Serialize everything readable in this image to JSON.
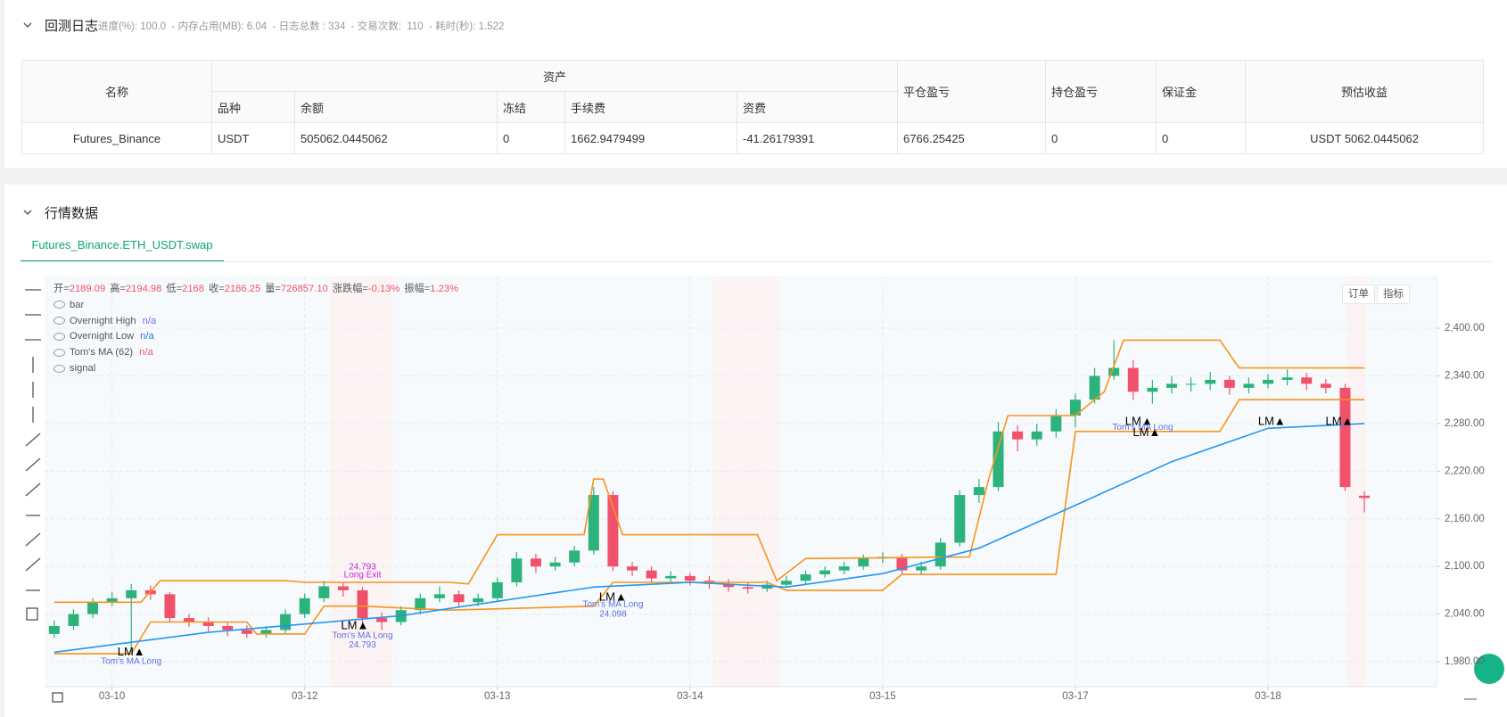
{
  "header": {
    "title": "回测日志",
    "stats": "进度(%): 100.0  - 内存占用(MB): 6.04  - 日志总数 : 334  - 交易次数:  110  - 耗时(秒): 1.522"
  },
  "table": {
    "name_header": "名称",
    "asset_header": "资产",
    "asset_subheaders": [
      "品种",
      "余额",
      "冻结",
      "手续费",
      "资费"
    ],
    "other_headers": [
      "平仓盈亏",
      "持仓盈亏",
      "保证金",
      "预估收益"
    ],
    "rows": [
      [
        "Futures_Binance",
        "USDT",
        "505062.0445062",
        "0",
        "1662.9479499",
        "-41.26179391",
        "6766.25425",
        "0",
        "0",
        "USDT 5062.0445062"
      ]
    ]
  },
  "market": {
    "title": "行情数据",
    "tab": "Futures_Binance.ETH_USDT.swap",
    "buttons": [
      "订单",
      "指标"
    ]
  },
  "chart_data": {
    "type": "candlestick",
    "info": [
      {
        "label": "开=",
        "value": "2189.09"
      },
      {
        "label": "高=",
        "value": "2194.98"
      },
      {
        "label": "低=",
        "value": "2168"
      },
      {
        "label": "收=",
        "value": "2186.25"
      },
      {
        "label": "量=",
        "value": "726857.10"
      },
      {
        "label": "涨跌幅=",
        "value": "-0.13%"
      },
      {
        "label": "振幅=",
        "value": "1.23%"
      }
    ],
    "bar_label": "bar",
    "signal_label": "signal",
    "up_color": "#2bb37b",
    "down_color": "#f0526b",
    "xlim": [
      -0.35,
      6.87
    ],
    "ylim": [
      1948.6,
      2465.2
    ],
    "grid": true,
    "xticks": [
      {
        "value": 0,
        "label": "03-10"
      },
      {
        "value": 1,
        "label": "03-12"
      },
      {
        "value": 2,
        "label": "03-13"
      },
      {
        "value": 3,
        "label": "03-14"
      },
      {
        "value": 4,
        "label": "03-15"
      },
      {
        "value": 5,
        "label": "03-17"
      },
      {
        "value": 6,
        "label": "03-18"
      }
    ],
    "yticks": [
      {
        "value": 1980,
        "label": "1,980.00"
      },
      {
        "value": 2040,
        "label": "2,040.00"
      },
      {
        "value": 2100,
        "label": "2,100.00"
      },
      {
        "value": 2160,
        "label": "2,160.00"
      },
      {
        "value": 2220,
        "label": "2,220.00"
      },
      {
        "value": 2280,
        "label": "2,280.00"
      },
      {
        "value": 2340,
        "label": "2,340.00"
      },
      {
        "value": 2400,
        "label": "2,400.00"
      }
    ],
    "x": [
      -0.3,
      -0.2,
      -0.1,
      0,
      0.1,
      0.2,
      0.3,
      0.4,
      0.5,
      0.6,
      0.7,
      0.8,
      0.9,
      1,
      1.1,
      1.2,
      1.3,
      1.4,
      1.5,
      1.6,
      1.7,
      1.8,
      1.9,
      2,
      2.1,
      2.2,
      2.3,
      2.4,
      2.5,
      2.6,
      2.7,
      2.8,
      2.9,
      3,
      3.1,
      3.2,
      3.3,
      3.4,
      3.5,
      3.6,
      3.7,
      3.8,
      3.9,
      4,
      4.1,
      4.2,
      4.3,
      4.4,
      4.5,
      4.6,
      4.7,
      4.8,
      4.9,
      5,
      5.1,
      5.2,
      5.3,
      5.4,
      5.5,
      5.6,
      5.7,
      5.8,
      5.9,
      6,
      6.1,
      6.2,
      6.3,
      6.4,
      6.5
    ],
    "open": [
      2015,
      2025,
      2040,
      2055,
      2060,
      2070,
      2065,
      2035,
      2030,
      2025,
      2020,
      2015,
      2020,
      2040,
      2060,
      2075,
      2070,
      2035,
      2030,
      2045,
      2060,
      2065,
      2055,
      2060,
      2080,
      2110,
      2100,
      2105,
      2120,
      2190,
      2100,
      2095,
      2085,
      2088,
      2082,
      2078,
      2074,
      2072,
      2077,
      2082,
      2090,
      2095,
      2100,
      2110,
      2112,
      2095,
      2100,
      2130,
      2190,
      2200,
      2270,
      2260,
      2270,
      2290,
      2310,
      2340,
      2350,
      2320,
      2325,
      2330,
      2330,
      2335,
      2325,
      2330,
      2335,
      2338,
      2330,
      2325,
      2189.09
    ],
    "high": [
      2032,
      2046,
      2060,
      2068,
      2078,
      2076,
      2068,
      2040,
      2036,
      2030,
      2026,
      2025,
      2046,
      2066,
      2082,
      2080,
      2074,
      2042,
      2050,
      2066,
      2075,
      2070,
      2066,
      2086,
      2118,
      2116,
      2112,
      2126,
      2200,
      2195,
      2106,
      2100,
      2094,
      2092,
      2088,
      2084,
      2080,
      2082,
      2088,
      2095,
      2100,
      2106,
      2115,
      2118,
      2116,
      2106,
      2136,
      2196,
      2210,
      2282,
      2278,
      2280,
      2298,
      2318,
      2350,
      2385,
      2360,
      2335,
      2340,
      2338,
      2345,
      2340,
      2338,
      2342,
      2348,
      2344,
      2336,
      2330,
      2194.98
    ],
    "low": [
      2010,
      2020,
      2035,
      2050,
      1990,
      2058,
      2030,
      2024,
      2018,
      2012,
      2010,
      2010,
      2016,
      2035,
      2055,
      2062,
      2025,
      2020,
      2026,
      2040,
      2055,
      2048,
      2050,
      2056,
      2075,
      2092,
      2095,
      2100,
      2115,
      2094,
      2088,
      2080,
      2080,
      2076,
      2072,
      2068,
      2066,
      2068,
      2074,
      2078,
      2086,
      2090,
      2096,
      2104,
      2090,
      2090,
      2096,
      2125,
      2180,
      2195,
      2245,
      2252,
      2262,
      2275,
      2305,
      2335,
      2310,
      2305,
      2318,
      2320,
      2322,
      2316,
      2318,
      2324,
      2328,
      2322,
      2318,
      2195,
      2168
    ],
    "close": [
      2025,
      2040,
      2055,
      2060,
      2070,
      2065,
      2035,
      2030,
      2025,
      2020,
      2015,
      2020,
      2040,
      2060,
      2075,
      2070,
      2035,
      2030,
      2045,
      2060,
      2065,
      2055,
      2060,
      2080,
      2110,
      2100,
      2105,
      2120,
      2190,
      2100,
      2095,
      2085,
      2088,
      2082,
      2078,
      2074,
      2072,
      2077,
      2082,
      2090,
      2095,
      2100,
      2110,
      2112,
      2095,
      2100,
      2130,
      2190,
      2200,
      2270,
      2260,
      2270,
      2290,
      2310,
      2340,
      2350,
      2320,
      2325,
      2330,
      2330,
      2335,
      2325,
      2330,
      2335,
      2338,
      2330,
      2325,
      2200,
      2186.25
    ],
    "series": [
      {
        "name": "Overnight High",
        "status": "n/a",
        "status_color": "#7b61ff",
        "color": "#f7931a",
        "x": [
          -0.3,
          0.15,
          0.25,
          0.9,
          1.0,
          1.75,
          1.85,
          2.0,
          2.45,
          2.5,
          2.55,
          2.65,
          3.35,
          3.45,
          3.6,
          4.45,
          4.55,
          4.65,
          5.0,
          5.15,
          5.25,
          5.75,
          5.85,
          6.5
        ],
        "values": [
          2055,
          2055,
          2082,
          2082,
          2080,
          2080,
          2078,
          2140,
          2140,
          2210,
          2210,
          2140,
          2140,
          2082,
          2110,
          2112,
          2210,
          2290,
          2290,
          2320,
          2385,
          2385,
          2350,
          2350
        ]
      },
      {
        "name": "Overnight Low",
        "status": "n/a",
        "status_color": "#2f6fe4",
        "color": "#f7931a",
        "x": [
          -0.3,
          0.1,
          0.2,
          0.7,
          0.75,
          1.0,
          1.1,
          1.3,
          1.75,
          2.5,
          2.6,
          3.4,
          3.5,
          4.0,
          4.1,
          4.9,
          5.0,
          5.75,
          5.85,
          6.5
        ],
        "values": [
          1990,
          1990,
          2030,
          2030,
          2015,
          2015,
          2050,
          2050,
          2045,
          2050,
          2080,
          2080,
          2070,
          2070,
          2090,
          2090,
          2270,
          2270,
          2310,
          2310
        ]
      },
      {
        "name": "Tom's MA (62)",
        "status": "n/a",
        "status_color": "#f0526b",
        "color": "#2196f3",
        "x": [
          -0.3,
          0.5,
          1.5,
          2.5,
          3.0,
          3.5,
          4.0,
          4.5,
          5.0,
          5.5,
          6.0,
          6.5
        ],
        "values": [
          1992,
          2017,
          2038,
          2074,
          2080,
          2074,
          2091,
          2123,
          2177,
          2232,
          2274,
          2280
        ]
      }
    ],
    "annotations": [
      {
        "text": "LM▲",
        "x": 0.1,
        "y": 1992,
        "color": "#000000"
      },
      {
        "text": "Tom's MA Long",
        "x": 0.1,
        "y": 1980,
        "color": "#5b6ee1"
      },
      {
        "text": "24.793",
        "x": 1.3,
        "y": 2099,
        "color": "#c026d3"
      },
      {
        "text": "Long Exit",
        "x": 1.3,
        "y": 2089,
        "color": "#c026d3"
      },
      {
        "text": "LM▲",
        "x": 1.26,
        "y": 2025,
        "color": "#000000"
      },
      {
        "text": "Tom's MA Long",
        "x": 1.3,
        "y": 2013,
        "color": "#5b6ee1"
      },
      {
        "text": "24.793",
        "x": 1.3,
        "y": 2001,
        "color": "#5b6ee1"
      },
      {
        "text": "LM▲",
        "x": 2.6,
        "y": 2061,
        "color": "#000000"
      },
      {
        "text": "Tom's MA Long",
        "x": 2.6,
        "y": 2052,
        "color": "#5b6ee1"
      },
      {
        "text": "24.098",
        "x": 2.6,
        "y": 2040,
        "color": "#5b6ee1"
      },
      {
        "text": "LM▲",
        "x": 5.33,
        "y": 2282,
        "color": "#000000"
      },
      {
        "text": "Tom's MA Long",
        "x": 5.35,
        "y": 2275,
        "color": "#5b6ee1"
      },
      {
        "text": "LM▲",
        "x": 5.37,
        "y": 2268,
        "color": "#000000"
      },
      {
        "text": "LM▲",
        "x": 6.02,
        "y": 2282,
        "color": "#000000"
      },
      {
        "text": "LM▲",
        "x": 6.37,
        "y": 2282,
        "color": "#000000"
      }
    ]
  }
}
